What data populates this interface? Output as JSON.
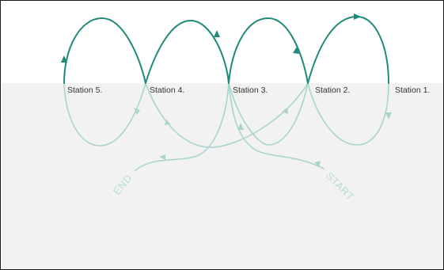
{
  "diagram": {
    "stations": [
      {
        "label": "Station 5."
      },
      {
        "label": "Station 4."
      },
      {
        "label": "Station 3."
      },
      {
        "label": "Station 2."
      },
      {
        "label": "Station 1."
      }
    ],
    "start_label": "START",
    "end_label": "END"
  },
  "colors": {
    "path_dark": "#1f8a7a",
    "path_light": "#a9d5ce",
    "lower_band": "#f2f2f2",
    "background": "#ffffff",
    "label_text": "#333333"
  }
}
